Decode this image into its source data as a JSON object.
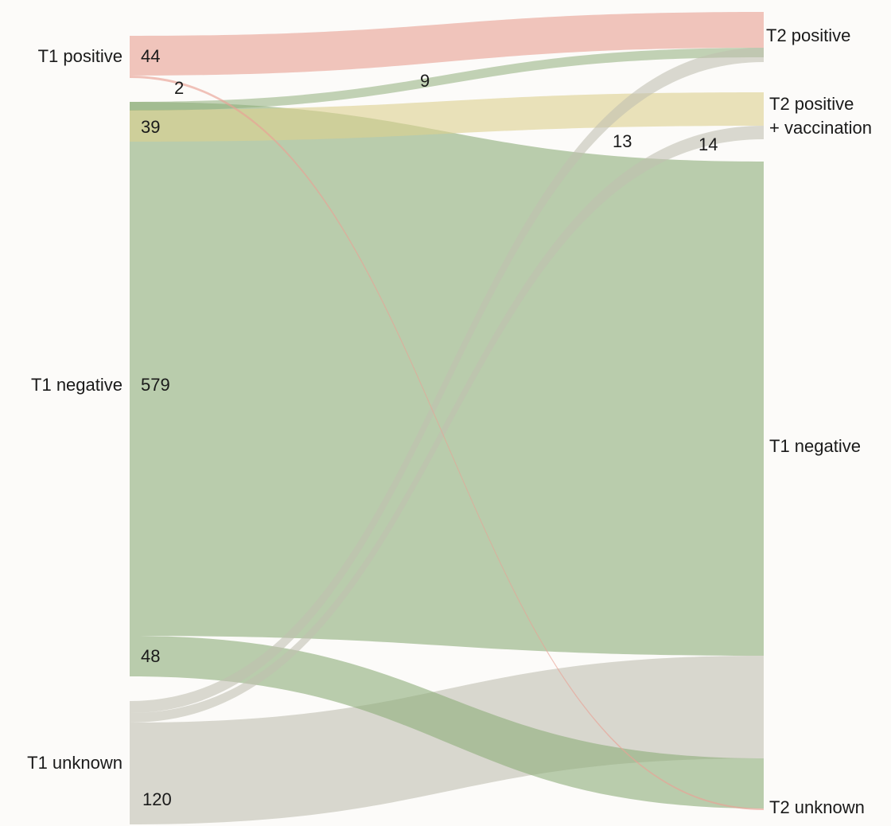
{
  "chart_data": {
    "type": "sankey",
    "nodes_left": [
      {
        "id": "L_pos",
        "label": "T1 positive"
      },
      {
        "id": "L_neg",
        "label": "T1 negative"
      },
      {
        "id": "L_unk",
        "label": "T1 unknown"
      }
    ],
    "nodes_right": [
      {
        "id": "R_pos",
        "label": "T2 positive"
      },
      {
        "id": "R_vac",
        "label": [
          "T2 positive",
          "+ vaccination"
        ]
      },
      {
        "id": "R_neg",
        "label": "T1 negative"
      },
      {
        "id": "R_unk",
        "label": "T2 unknown"
      }
    ],
    "links": [
      {
        "source": "L_pos",
        "target": "R_pos",
        "value": 44,
        "label": "44"
      },
      {
        "source": "L_pos",
        "target": "R_unk",
        "value": 2,
        "label": "2"
      },
      {
        "source": "L_neg",
        "target": "R_pos",
        "value": 9,
        "label": "9"
      },
      {
        "source": "L_neg",
        "target": "R_vac",
        "value": 39,
        "label": "39"
      },
      {
        "source": "L_neg",
        "target": "R_neg",
        "value": 579,
        "label": "579"
      },
      {
        "source": "L_neg",
        "target": "R_unk",
        "value": 48,
        "label": "48"
      },
      {
        "source": "L_unk",
        "target": "R_pos",
        "value": 13,
        "label": "13"
      },
      {
        "source": "L_unk",
        "target": "R_vac",
        "value": 14,
        "label": "14"
      },
      {
        "source": "L_unk",
        "target": "R_neg",
        "value": 120,
        "label": "120"
      }
    ],
    "colors": {
      "positive": "#e9a195",
      "vaccination": "#dcd08e",
      "negative": "#8fae7c",
      "unknown": "#bfc0b0"
    }
  }
}
